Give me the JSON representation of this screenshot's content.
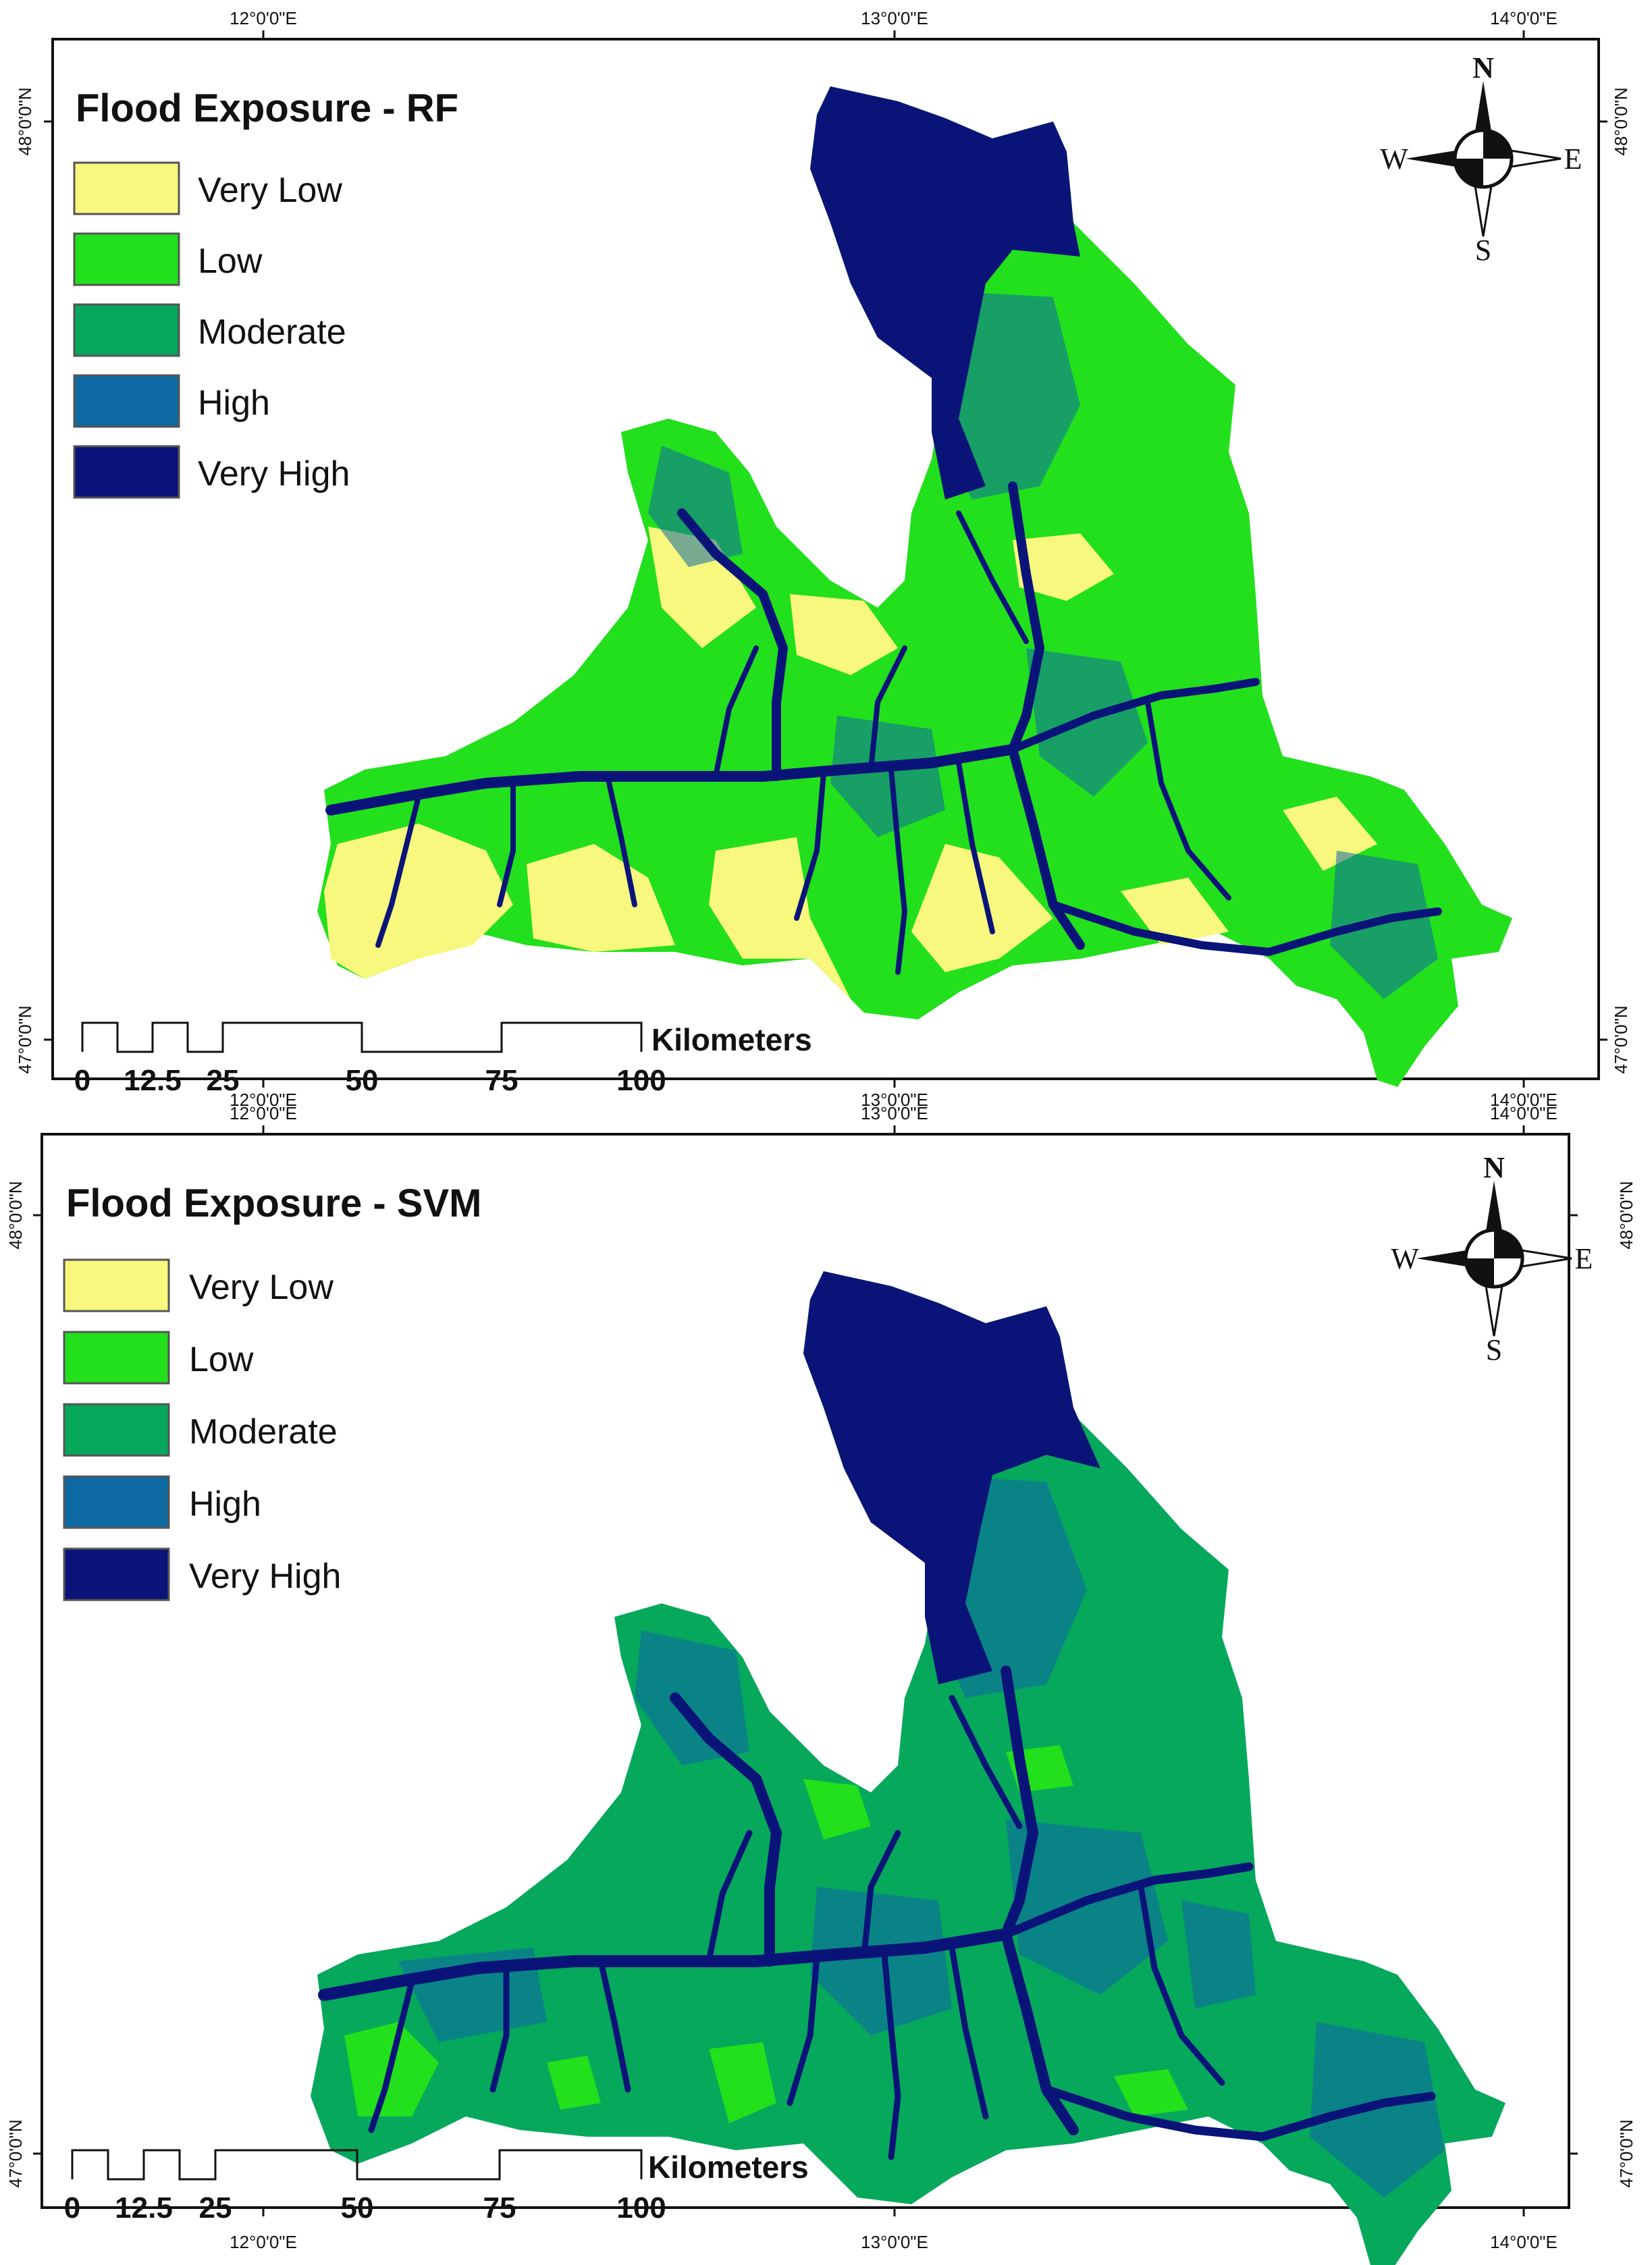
{
  "colors": {
    "very_low": "#f8f87e",
    "low": "#22e01c",
    "moderate": "#06a85c",
    "high": "#0e6aa3",
    "very_high": "#0a1478",
    "frame": "#111111"
  },
  "legend": {
    "items": [
      {
        "label": "Very Low",
        "color": "#f8f87e"
      },
      {
        "label": "Low",
        "color": "#22e01c"
      },
      {
        "label": "Moderate",
        "color": "#06a85c"
      },
      {
        "label": "High",
        "color": "#0e6aa3"
      },
      {
        "label": "Very High",
        "color": "#0a1478"
      }
    ]
  },
  "graticule": {
    "lon_labels": [
      "12°0'0\"E",
      "13°0'0\"E",
      "14°0'0\"E"
    ],
    "lat_labels": [
      "48°0'0\"N",
      "47°0'0\"N"
    ]
  },
  "compass": {
    "n": "N",
    "s": "S",
    "e": "E",
    "w": "W"
  },
  "scale_bar": {
    "ticks": [
      "0",
      "12.5",
      "25",
      "50",
      "75",
      "100"
    ],
    "unit": "Kilometers"
  },
  "panels": [
    {
      "title": "Flood Exposure - RF",
      "model": "RF",
      "fill_base": "#22e01c",
      "fill_accent": "#f8f87e"
    },
    {
      "title": "Flood Exposure - SVM",
      "model": "SVM",
      "fill_base": "#06a85c",
      "fill_accent": "#22e01c"
    }
  ]
}
